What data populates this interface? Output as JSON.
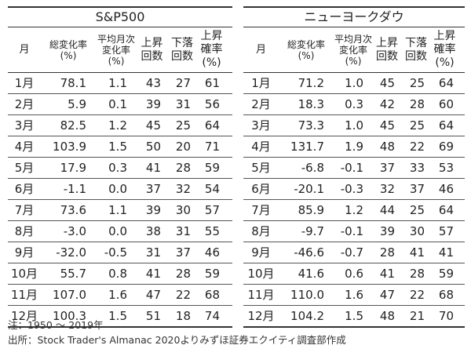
{
  "left": {
    "title": "S&P500",
    "headers": [
      "月",
      "総変化率\n(%)",
      "平均月次\n変化率\n(%)",
      "上昇\n回数",
      "下落\n回数",
      "上昇\n確率\n(%)"
    ],
    "rows": [
      [
        "1月",
        "78.1",
        "1.1",
        "43",
        "27",
        "61"
      ],
      [
        "2月",
        "5.9",
        "0.1",
        "39",
        "31",
        "56"
      ],
      [
        "3月",
        "82.5",
        "1.2",
        "45",
        "25",
        "64"
      ],
      [
        "4月",
        "103.9",
        "1.5",
        "50",
        "20",
        "71"
      ],
      [
        "5月",
        "17.9",
        "0.3",
        "41",
        "28",
        "59"
      ],
      [
        "6月",
        "-1.1",
        "0.0",
        "37",
        "32",
        "54"
      ],
      [
        "7月",
        "73.6",
        "1.1",
        "39",
        "30",
        "57"
      ],
      [
        "8月",
        "-3.0",
        "0.0",
        "38",
        "31",
        "55"
      ],
      [
        "9月",
        "-32.0",
        "-0.5",
        "31",
        "37",
        "46"
      ],
      [
        "10月",
        "55.7",
        "0.8",
        "41",
        "28",
        "59"
      ],
      [
        "11月",
        "107.0",
        "1.6",
        "47",
        "22",
        "68"
      ],
      [
        "12月",
        "100.3",
        "1.5",
        "51",
        "18",
        "74"
      ]
    ]
  },
  "right": {
    "title": "ニューヨークダウ",
    "headers": [
      "月",
      "総変化率\n(%)",
      "平均月次\n変化率\n(%)",
      "上昇\n回数",
      "下落\n回数",
      "上昇\n確率\n(%)"
    ],
    "rows": [
      [
        "1月",
        "71.2",
        "1.0",
        "45",
        "25",
        "64"
      ],
      [
        "2月",
        "18.3",
        "0.3",
        "42",
        "28",
        "60"
      ],
      [
        "3月",
        "73.3",
        "1.0",
        "45",
        "25",
        "64"
      ],
      [
        "4月",
        "131.7",
        "1.9",
        "48",
        "22",
        "69"
      ],
      [
        "5月",
        "-6.8",
        "-0.1",
        "37",
        "33",
        "53"
      ],
      [
        "6月",
        "-20.1",
        "-0.3",
        "32",
        "37",
        "46"
      ],
      [
        "7月",
        "85.9",
        "1.2",
        "44",
        "25",
        "64"
      ],
      [
        "8月",
        "-9.7",
        "-0.1",
        "39",
        "30",
        "57"
      ],
      [
        "9月",
        "-46.6",
        "-0.7",
        "28",
        "41",
        "41"
      ],
      [
        "10月",
        "41.6",
        "0.6",
        "41",
        "28",
        "59"
      ],
      [
        "11月",
        "110.0",
        "1.6",
        "47",
        "22",
        "68"
      ],
      [
        "12月",
        "104.2",
        "1.5",
        "48",
        "21",
        "70"
      ]
    ]
  },
  "notes": {
    "note": "注：1950 ～ 2019年",
    "source": "出所：Stock Trader's Almanac 2020よりみずほ証券エクイティ調査部作成"
  }
}
